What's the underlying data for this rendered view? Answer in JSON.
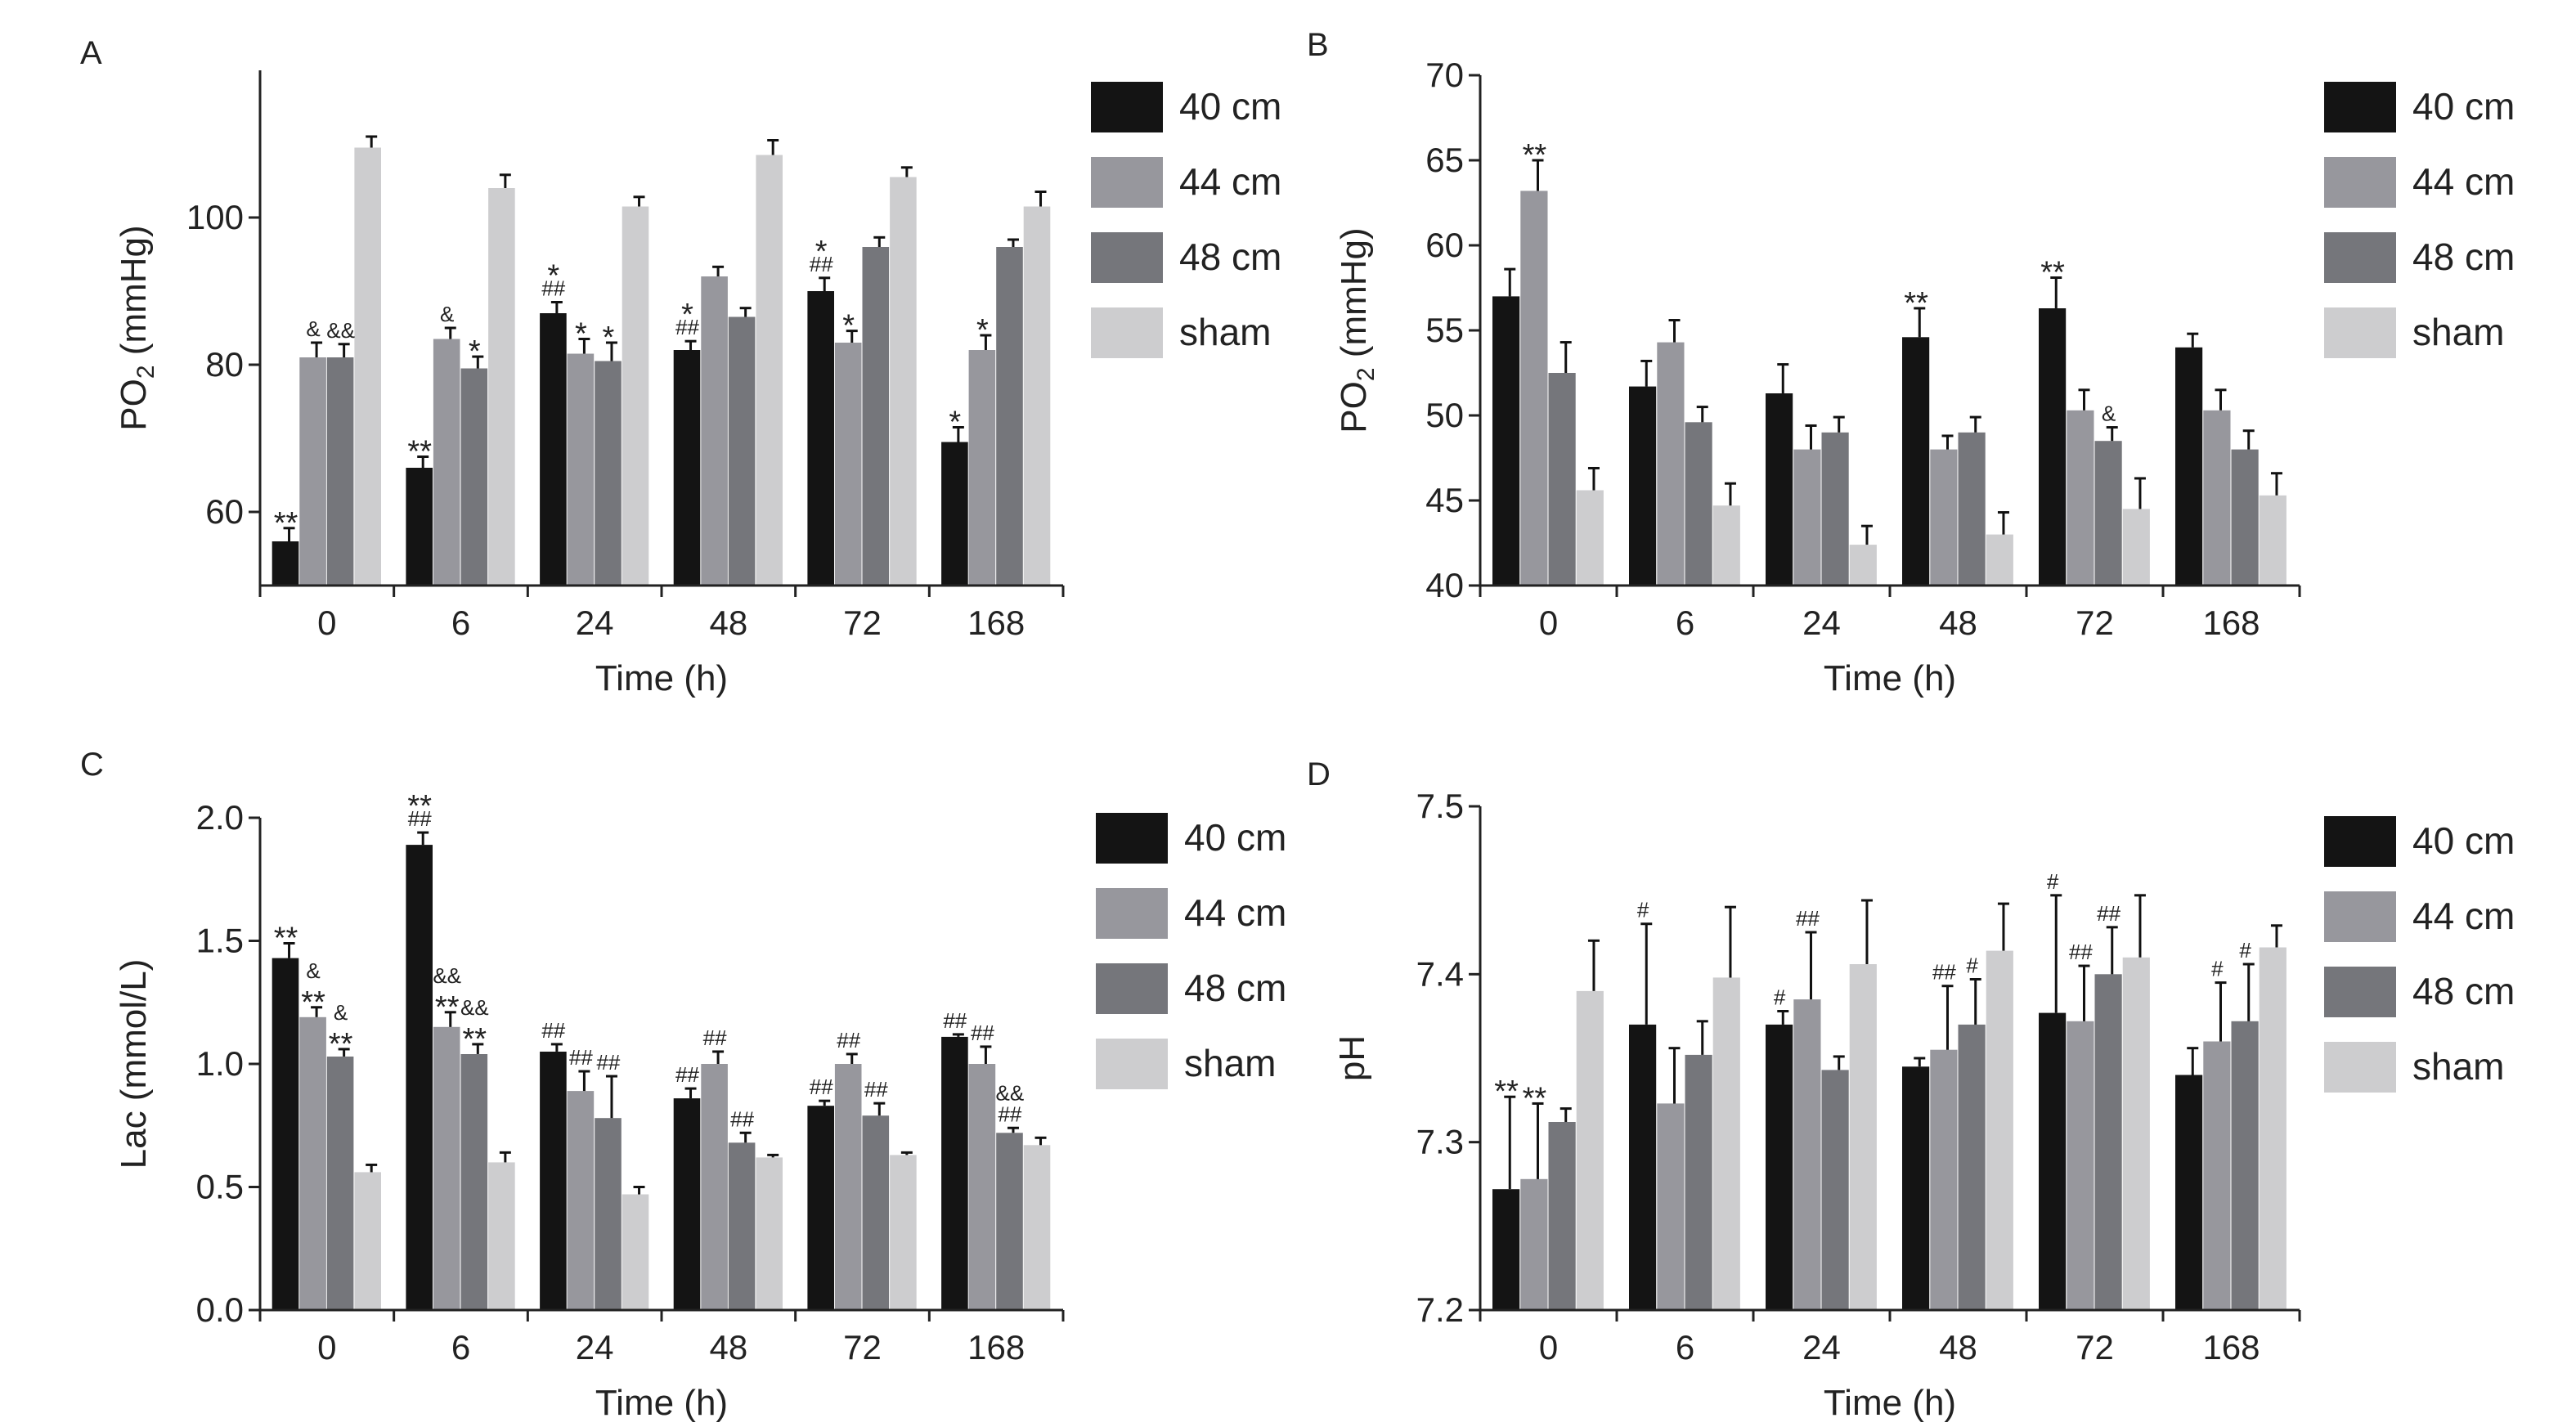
{
  "figure": {
    "series_names": [
      "40 cm",
      "44 cm",
      "48 cm",
      "sham"
    ],
    "colors": {
      "40 cm": "#141414",
      "44 cm": "#97979d",
      "48 cm": "#75767b",
      "sham": "#cdcdcf",
      "axis": "#222222",
      "text": "#222222"
    }
  },
  "chart_data": [
    {
      "panel": "A",
      "type": "bar",
      "xlabel": "Time (h)",
      "ylabel": "PO",
      "ylabel_sub": "2",
      "ylabel_tail": " (mmHg)",
      "categories": [
        "0",
        "6",
        "24",
        "48",
        "72",
        "168"
      ],
      "ylim": [
        50,
        120
      ],
      "yticks": [
        60,
        80,
        100
      ],
      "yticklabels": [
        "60",
        "80",
        "100"
      ],
      "legend": "right",
      "series": [
        {
          "name": "40 cm",
          "values": [
            56,
            66,
            87,
            82,
            90,
            69.5
          ],
          "errors": [
            1.8,
            1.5,
            1.5,
            1.2,
            1.8,
            2
          ]
        },
        {
          "name": "44 cm",
          "values": [
            81,
            83.5,
            81.5,
            92,
            83,
            82
          ],
          "errors": [
            2,
            1.5,
            2,
            1.3,
            1.6,
            2
          ]
        },
        {
          "name": "48 cm",
          "values": [
            81,
            79.5,
            80.5,
            86.5,
            96,
            96
          ],
          "errors": [
            1.8,
            1.6,
            2.5,
            1.2,
            1.3,
            1
          ]
        },
        {
          "name": "sham",
          "values": [
            109.5,
            104,
            101.5,
            108.5,
            105.5,
            101.5
          ],
          "errors": [
            1.5,
            1.8,
            1.3,
            2,
            1.3,
            2
          ]
        }
      ],
      "annotations": [
        {
          "category": "0",
          "series": "40 cm",
          "lines": [
            "**"
          ]
        },
        {
          "category": "0",
          "series": "44 cm",
          "lines": [
            "&"
          ]
        },
        {
          "category": "0",
          "series": "48 cm",
          "lines": [
            "&&"
          ]
        },
        {
          "category": "6",
          "series": "40 cm",
          "lines": [
            "**"
          ]
        },
        {
          "category": "6",
          "series": "44 cm",
          "lines": [
            "&"
          ]
        },
        {
          "category": "6",
          "series": "48 cm",
          "lines": [
            "*"
          ]
        },
        {
          "category": "24",
          "series": "40 cm",
          "lines": [
            "*",
            "##"
          ]
        },
        {
          "category": "24",
          "series": "44 cm",
          "lines": [
            "*"
          ]
        },
        {
          "category": "24",
          "series": "48 cm",
          "lines": [
            "*"
          ]
        },
        {
          "category": "48",
          "series": "40 cm",
          "lines": [
            "*",
            "##"
          ]
        },
        {
          "category": "72",
          "series": "40 cm",
          "lines": [
            "*",
            "##"
          ]
        },
        {
          "category": "72",
          "series": "44 cm",
          "lines": [
            "*"
          ]
        },
        {
          "category": "168",
          "series": "40 cm",
          "lines": [
            "*"
          ]
        },
        {
          "category": "168",
          "series": "44 cm",
          "lines": [
            "*"
          ]
        }
      ]
    },
    {
      "panel": "B",
      "type": "bar",
      "xlabel": "Time (h)",
      "ylabel": "PO",
      "ylabel_sub": "2",
      "ylabel_tail": " (mmHg)",
      "categories": [
        "0",
        "6",
        "24",
        "48",
        "72",
        "168"
      ],
      "ylim": [
        40,
        70
      ],
      "yticks": [
        40,
        45,
        50,
        55,
        60,
        65,
        70
      ],
      "yticklabels": [
        "40",
        "45",
        "50",
        "55",
        "60",
        "65",
        "70"
      ],
      "legend": "right",
      "series": [
        {
          "name": "40 cm",
          "values": [
            57,
            51.7,
            51.3,
            54.6,
            56.3,
            54
          ],
          "errors": [
            1.6,
            1.5,
            1.7,
            1.7,
            1.8,
            0.8
          ]
        },
        {
          "name": "44 cm",
          "values": [
            63.2,
            54.3,
            48,
            48,
            50.3,
            50.3
          ],
          "errors": [
            1.8,
            1.3,
            1.4,
            0.8,
            1.2,
            1.2
          ]
        },
        {
          "name": "48 cm",
          "values": [
            52.5,
            49.6,
            49,
            49,
            48.5,
            48
          ],
          "errors": [
            1.8,
            0.9,
            0.9,
            0.9,
            0.8,
            1.1
          ]
        },
        {
          "name": "sham",
          "values": [
            45.6,
            44.7,
            42.4,
            43,
            44.5,
            45.3
          ],
          "errors": [
            1.3,
            1.3,
            1.1,
            1.3,
            1.8,
            1.3
          ]
        }
      ],
      "annotations": [
        {
          "category": "0",
          "series": "44 cm",
          "lines": [
            "**"
          ]
        },
        {
          "category": "48",
          "series": "40 cm",
          "lines": [
            "**"
          ]
        },
        {
          "category": "72",
          "series": "40 cm",
          "lines": [
            "**"
          ]
        },
        {
          "category": "72",
          "series": "48 cm",
          "lines": [
            "&"
          ]
        }
      ]
    },
    {
      "panel": "C",
      "type": "bar",
      "xlabel": "Time (h)",
      "ylabel": "Lac (mmol/L)",
      "ylabel_sub": "",
      "ylabel_tail": "",
      "categories": [
        "0",
        "6",
        "24",
        "48",
        "72",
        "168"
      ],
      "ylim": [
        0,
        2.0
      ],
      "yticks": [
        0,
        0.5,
        1.0,
        1.5,
        2.0
      ],
      "yticklabels": [
        "0.0",
        "0.5",
        "1.0",
        "1.5",
        "2.0"
      ],
      "legend": "right",
      "series": [
        {
          "name": "40 cm",
          "values": [
            1.43,
            1.89,
            1.05,
            0.86,
            0.83,
            1.11
          ],
          "errors": [
            0.06,
            0.05,
            0.03,
            0.04,
            0.02,
            0.01
          ]
        },
        {
          "name": "44 cm",
          "values": [
            1.19,
            1.15,
            0.89,
            1.0,
            1.0,
            1.0
          ],
          "errors": [
            0.04,
            0.06,
            0.08,
            0.05,
            0.04,
            0.07
          ]
        },
        {
          "name": "48 cm",
          "values": [
            1.03,
            1.04,
            0.78,
            0.68,
            0.79,
            0.72
          ],
          "errors": [
            0.03,
            0.04,
            0.17,
            0.04,
            0.05,
            0.02
          ]
        },
        {
          "name": "sham",
          "values": [
            0.56,
            0.6,
            0.47,
            0.62,
            0.63,
            0.67
          ],
          "errors": [
            0.03,
            0.04,
            0.03,
            0.01,
            0.01,
            0.03
          ]
        }
      ],
      "annotations": [
        {
          "category": "0",
          "series": "40 cm",
          "lines": [
            "**"
          ]
        },
        {
          "category": "0",
          "series": "44 cm",
          "lines": [
            "&",
            "**"
          ]
        },
        {
          "category": "0",
          "series": "48 cm",
          "lines": [
            "&",
            "**"
          ]
        },
        {
          "category": "6",
          "series": "40 cm",
          "lines": [
            "**",
            "##"
          ]
        },
        {
          "category": "6",
          "series": "44 cm",
          "lines": [
            "&&",
            "**"
          ]
        },
        {
          "category": "6",
          "series": "48 cm",
          "lines": [
            "&&",
            "**"
          ]
        },
        {
          "category": "24",
          "series": "40 cm",
          "lines": [
            "##"
          ]
        },
        {
          "category": "24",
          "series": "44 cm",
          "lines": [
            "##"
          ]
        },
        {
          "category": "24",
          "series": "48 cm",
          "lines": [
            "##"
          ]
        },
        {
          "category": "48",
          "series": "40 cm",
          "lines": [
            "##"
          ]
        },
        {
          "category": "48",
          "series": "44 cm",
          "lines": [
            "##"
          ]
        },
        {
          "category": "48",
          "series": "48 cm",
          "lines": [
            "##"
          ]
        },
        {
          "category": "72",
          "series": "40 cm",
          "lines": [
            "##"
          ]
        },
        {
          "category": "72",
          "series": "44 cm",
          "lines": [
            "##"
          ]
        },
        {
          "category": "72",
          "series": "48 cm",
          "lines": [
            "##"
          ]
        },
        {
          "category": "168",
          "series": "40 cm",
          "lines": [
            "##"
          ]
        },
        {
          "category": "168",
          "series": "44 cm",
          "lines": [
            "##"
          ]
        },
        {
          "category": "168",
          "series": "48 cm",
          "lines": [
            "&&",
            "##"
          ]
        }
      ]
    },
    {
      "panel": "D",
      "type": "bar",
      "xlabel": "Time (h)",
      "ylabel": "pH",
      "ylabel_sub": "",
      "ylabel_tail": "",
      "categories": [
        "0",
        "6",
        "24",
        "48",
        "72",
        "168"
      ],
      "ylim": [
        7.2,
        7.5
      ],
      "yticks": [
        7.2,
        7.3,
        7.4,
        7.5
      ],
      "yticklabels": [
        "7.2",
        "7.3",
        "7.4",
        "7.5"
      ],
      "legend": "right",
      "series": [
        {
          "name": "40 cm",
          "values": [
            7.272,
            7.37,
            7.37,
            7.345,
            7.377,
            7.34
          ],
          "errors": [
            0.055,
            0.06,
            0.008,
            0.005,
            0.07,
            0.016
          ]
        },
        {
          "name": "44 cm",
          "values": [
            7.278,
            7.323,
            7.385,
            7.355,
            7.372,
            7.36
          ],
          "errors": [
            0.045,
            0.033,
            0.04,
            0.038,
            0.033,
            0.035
          ]
        },
        {
          "name": "48 cm",
          "values": [
            7.312,
            7.352,
            7.343,
            7.37,
            7.4,
            7.372
          ],
          "errors": [
            0.008,
            0.02,
            0.008,
            0.027,
            0.028,
            0.034
          ]
        },
        {
          "name": "sham",
          "values": [
            7.39,
            7.398,
            7.406,
            7.414,
            7.41,
            7.416
          ],
          "errors": [
            0.03,
            0.042,
            0.038,
            0.028,
            0.037,
            0.013
          ]
        }
      ],
      "annotations": [
        {
          "category": "0",
          "series": "40 cm",
          "lines": [
            "**"
          ]
        },
        {
          "category": "0",
          "series": "44 cm",
          "lines": [
            "**"
          ]
        },
        {
          "category": "6",
          "series": "40 cm",
          "lines": [
            "#"
          ]
        },
        {
          "category": "24",
          "series": "40 cm",
          "lines": [
            "#"
          ]
        },
        {
          "category": "24",
          "series": "44 cm",
          "lines": [
            "##"
          ]
        },
        {
          "category": "48",
          "series": "44 cm",
          "lines": [
            "##"
          ]
        },
        {
          "category": "48",
          "series": "48 cm",
          "lines": [
            "#"
          ]
        },
        {
          "category": "72",
          "series": "40 cm",
          "lines": [
            "#"
          ]
        },
        {
          "category": "72",
          "series": "44 cm",
          "lines": [
            "##"
          ]
        },
        {
          "category": "72",
          "series": "48 cm",
          "lines": [
            "##"
          ]
        },
        {
          "category": "168",
          "series": "44 cm",
          "lines": [
            "#"
          ]
        },
        {
          "category": "168",
          "series": "48 cm",
          "lines": [
            "#"
          ]
        }
      ]
    }
  ]
}
